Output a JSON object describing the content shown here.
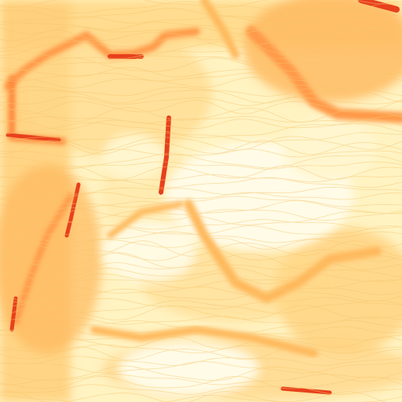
{
  "map": {
    "kind": "slope-contour-tile",
    "colors": {
      "background": "#fffbe6",
      "low": "#fff3c2",
      "mid_low": "#ffd98a",
      "mid": "#ffb85c",
      "high": "#ff8a3d",
      "peak": "#e8401c",
      "contour": "#f6c670"
    }
  }
}
